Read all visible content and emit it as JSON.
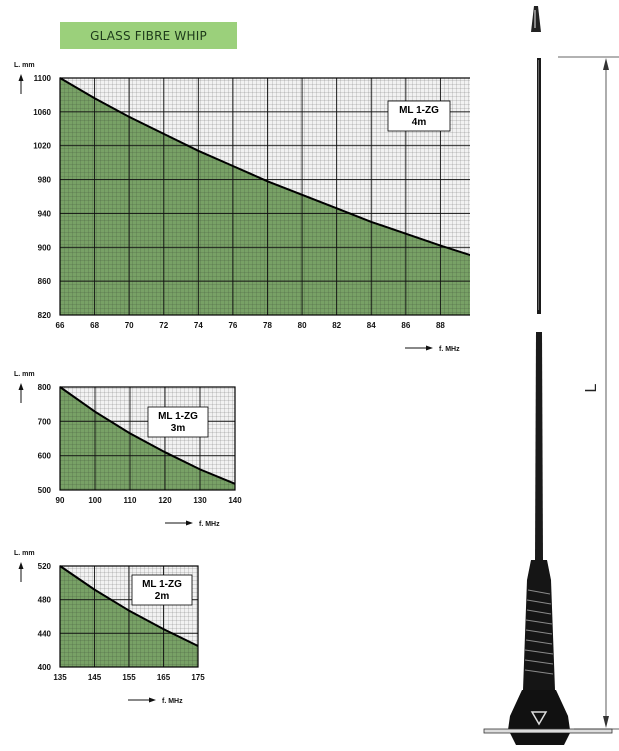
{
  "header": {
    "title": "GLASS FIBRE WHIP"
  },
  "colors": {
    "fill": "#78a166",
    "grid": "#111111",
    "bg": "#ffffff",
    "banner": "#9bd07b"
  },
  "chart_data": [
    {
      "type": "area",
      "label": [
        "ML 1-ZG",
        "4m"
      ],
      "ylabel": "L. mm",
      "xlabel": "f. MHz",
      "xlim": [
        66,
        90
      ],
      "ylim": [
        820,
        1100
      ],
      "xticks": [
        66,
        68,
        70,
        72,
        74,
        76,
        78,
        80,
        82,
        84,
        86,
        88,
        90
      ],
      "yticks": [
        820,
        860,
        900,
        940,
        980,
        1020,
        1060,
        1100
      ],
      "x": [
        66,
        68,
        70,
        72,
        74,
        76,
        78,
        80,
        82,
        84,
        86,
        88,
        90
      ],
      "y": [
        1100,
        1076,
        1054,
        1034,
        1014,
        996,
        978,
        962,
        946,
        930,
        916,
        902,
        889
      ]
    },
    {
      "type": "area",
      "label": [
        "ML 1-ZG",
        "3m"
      ],
      "ylabel": "L. mm",
      "xlabel": "f. MHz",
      "xlim": [
        90,
        140
      ],
      "ylim": [
        500,
        800
      ],
      "xticks": [
        90,
        100,
        110,
        120,
        130,
        140
      ],
      "yticks": [
        500,
        600,
        700,
        800
      ],
      "x": [
        90,
        100,
        110,
        120,
        130,
        140
      ],
      "y": [
        800,
        728,
        665,
        610,
        560,
        518
      ]
    },
    {
      "type": "area",
      "label": [
        "ML 1-ZG",
        "2m"
      ],
      "ylabel": "L. mm",
      "xlabel": "f. MHz",
      "xlim": [
        135,
        175
      ],
      "ylim": [
        400,
        520
      ],
      "xticks": [
        135,
        145,
        155,
        165,
        175
      ],
      "yticks": [
        400,
        440,
        480,
        520
      ],
      "x": [
        135,
        145,
        155,
        165,
        175
      ],
      "y": [
        520,
        492,
        467,
        445,
        425
      ]
    }
  ],
  "antenna": {
    "dimension_label": "L"
  }
}
